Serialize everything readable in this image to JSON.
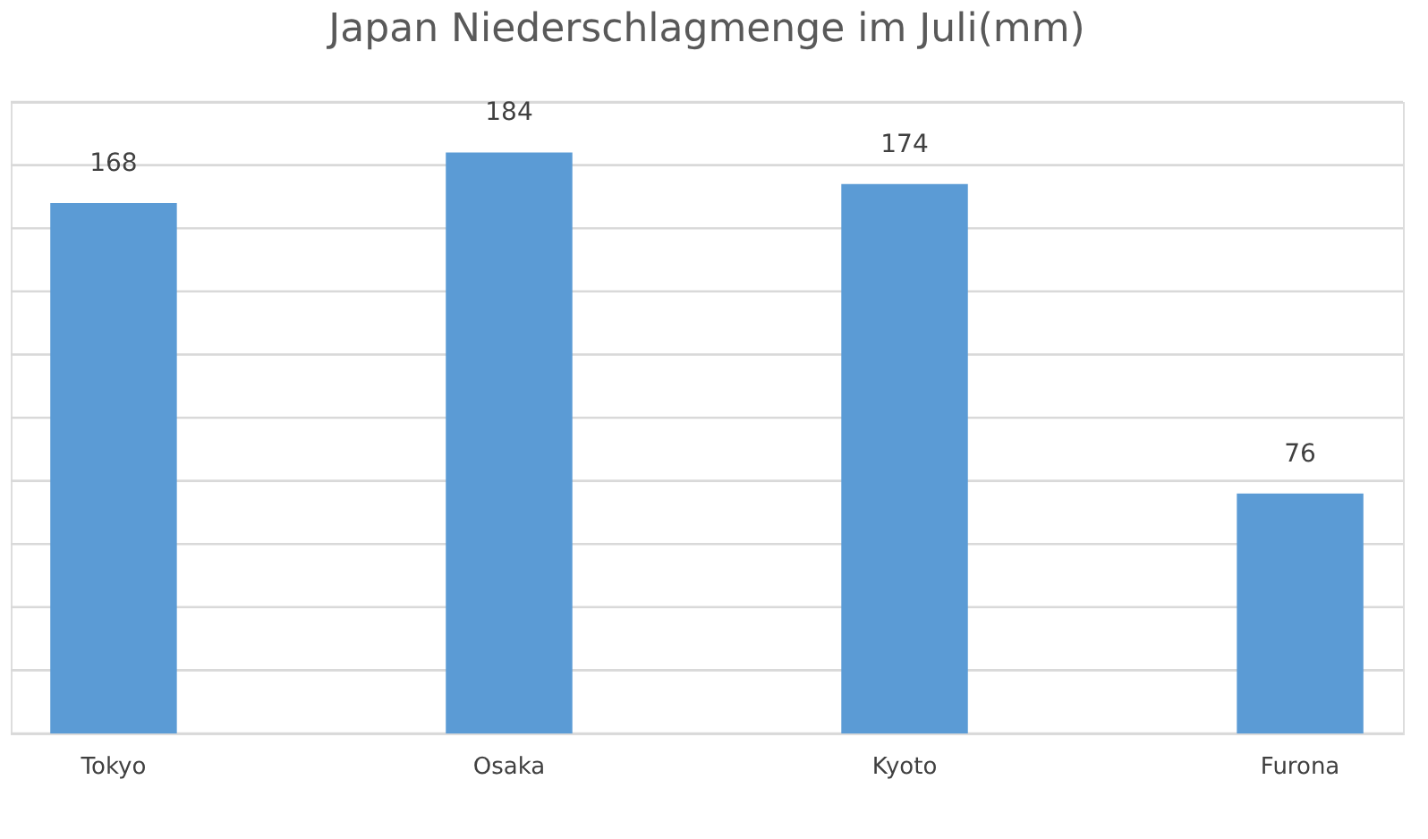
{
  "chart_data": {
    "type": "bar",
    "title": "Japan Niederschlagmenge im Juli(mm)",
    "categories": [
      "Tokyo",
      "Osaka",
      "Kyoto",
      "Furona"
    ],
    "values": [
      168,
      184,
      174,
      76
    ],
    "color": "#5b9bd5",
    "ylim": [
      0,
      200
    ],
    "yticks": [
      0,
      {
        "value": 20,
        "label": null
      },
      {
        "value": 40,
        "label": null
      },
      {
        "value": 60,
        "label": null
      },
      {
        "value": 80,
        "label": null
      },
      {
        "value": 100,
        "label": null
      },
      {
        "value": 120,
        "label": null
      },
      {
        "value": 140,
        "label": null
      },
      {
        "value": 160,
        "label": null
      },
      {
        "value": 180,
        "label": null
      },
      {
        "value": 200,
        "label": null
      }
    ],
    "tick_labels": "x",
    "grid": "y",
    "data_labels": true
  }
}
